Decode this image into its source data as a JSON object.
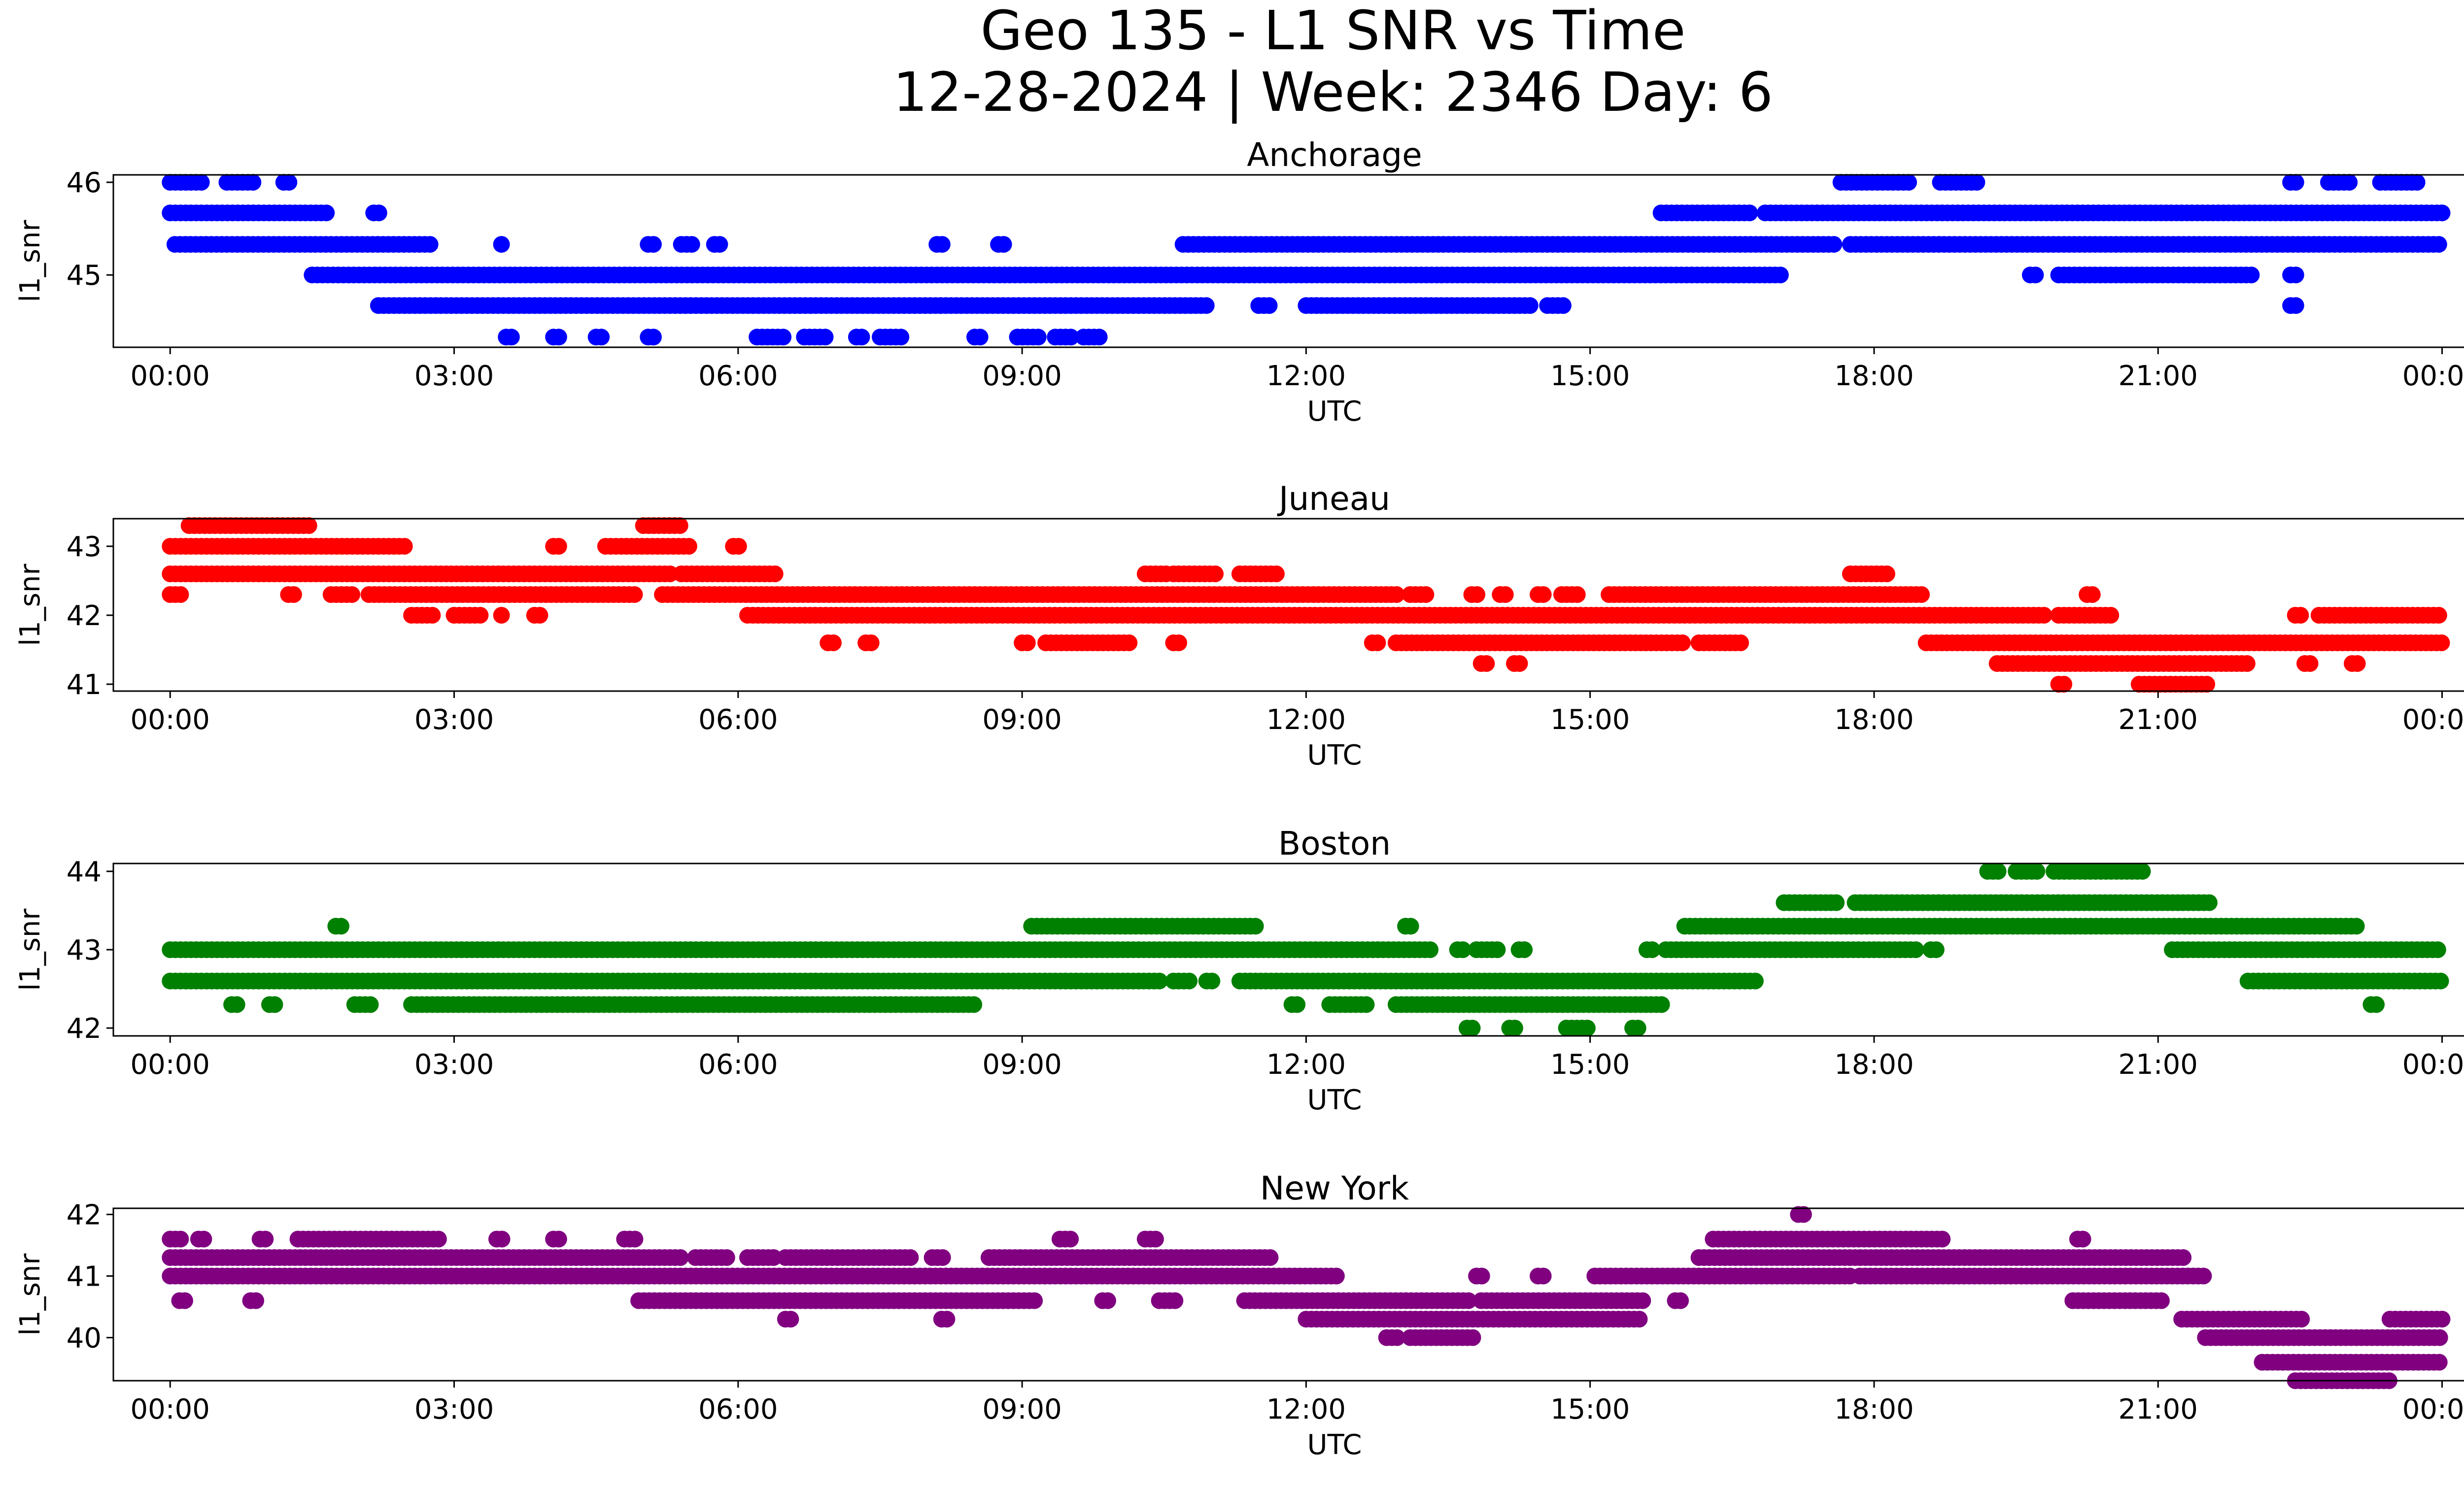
{
  "figure": {
    "title_line1": "Geo 135 - L1 SNR vs Time",
    "title_line2": "12-28-2024 | Week: 2346 Day: 6"
  },
  "chart_data": [
    {
      "type": "scatter",
      "title": "Anchorage",
      "xlabel": "UTC",
      "ylabel": "l1_snr",
      "color": "#0000ff",
      "x_ticks": [
        "00:00",
        "03:00",
        "06:00",
        "09:00",
        "12:00",
        "15:00",
        "18:00",
        "21:00",
        "00:00"
      ],
      "x_range_hours": [
        -0.6,
        25.2
      ],
      "ylim": [
        44.22,
        46.08
      ],
      "y_ticks": [
        45,
        46
      ],
      "levels": [
        {
          "y": 46.0,
          "ranges": [
            [
              0,
              0.33
            ],
            [
              0.6,
              0.92
            ],
            [
              1.2,
              1.3
            ],
            [
              17.65,
              18.4
            ],
            [
              18.7,
              19.1
            ],
            [
              22.4,
              22.5
            ],
            [
              22.8,
              23.05
            ],
            [
              23.35,
              23.75
            ]
          ]
        },
        {
          "y": 45.67,
          "ranges": [
            [
              0,
              1.7
            ],
            [
              2.15,
              2.25
            ],
            [
              15.75,
              16.7
            ],
            [
              16.85,
              24
            ]
          ]
        },
        {
          "y": 45.33,
          "ranges": [
            [
              0.05,
              2.75
            ],
            [
              3.5,
              3.55
            ],
            [
              5.05,
              5.15
            ],
            [
              5.4,
              5.55
            ],
            [
              5.75,
              5.85
            ],
            [
              8.1,
              8.2
            ],
            [
              8.75,
              8.85
            ],
            [
              10.7,
              17.6
            ],
            [
              17.75,
              24
            ]
          ]
        },
        {
          "y": 45.0,
          "ranges": [
            [
              1.5,
              17.05
            ],
            [
              19.65,
              19.75
            ],
            [
              19.95,
              22
            ],
            [
              22.4,
              22.5
            ]
          ]
        },
        {
          "y": 44.67,
          "ranges": [
            [
              2.2,
              10.95
            ],
            [
              11.5,
              11.65
            ],
            [
              12.0,
              14.4
            ],
            [
              14.55,
              14.75
            ],
            [
              22.4,
              22.5
            ]
          ]
        },
        {
          "y": 44.33,
          "ranges": [
            [
              3.55,
              3.65
            ],
            [
              4.05,
              4.15
            ],
            [
              4.5,
              4.6
            ],
            [
              5.05,
              5.15
            ],
            [
              6.2,
              6.5
            ],
            [
              6.7,
              6.95
            ],
            [
              7.25,
              7.35
            ],
            [
              7.5,
              7.75
            ],
            [
              8.5,
              8.6
            ],
            [
              8.95,
              9.2
            ],
            [
              9.35,
              9.55
            ],
            [
              9.65,
              9.85
            ]
          ]
        }
      ]
    },
    {
      "type": "scatter",
      "title": "Juneau",
      "xlabel": "UTC",
      "ylabel": "l1_snr",
      "color": "#ff0000",
      "x_ticks": [
        "00:00",
        "03:00",
        "06:00",
        "09:00",
        "12:00",
        "15:00",
        "18:00",
        "21:00",
        "00:00"
      ],
      "x_range_hours": [
        -0.6,
        25.2
      ],
      "ylim": [
        40.9,
        43.4
      ],
      "y_ticks": [
        41,
        42,
        43
      ],
      "levels": [
        {
          "y": 43.3,
          "ranges": [
            [
              0.2,
              1.5
            ],
            [
              5.0,
              5.4
            ]
          ]
        },
        {
          "y": 43.0,
          "ranges": [
            [
              0,
              2.5
            ],
            [
              4.05,
              4.15
            ],
            [
              4.6,
              5.5
            ],
            [
              5.95,
              6.05
            ]
          ]
        },
        {
          "y": 42.6,
          "ranges": [
            [
              0,
              5.3
            ],
            [
              5.4,
              6.4
            ],
            [
              10.3,
              10.55
            ],
            [
              10.6,
              11.05
            ],
            [
              11.3,
              11.7
            ],
            [
              17.75,
              18.15
            ]
          ]
        },
        {
          "y": 42.3,
          "ranges": [
            [
              0,
              0.15
            ],
            [
              1.25,
              1.35
            ],
            [
              1.7,
              1.95
            ],
            [
              2.1,
              4.95
            ],
            [
              5.2,
              13.0
            ],
            [
              13.1,
              13.3
            ],
            [
              13.75,
              13.85
            ],
            [
              14.05,
              14.15
            ],
            [
              14.45,
              14.55
            ],
            [
              14.7,
              14.9
            ],
            [
              15.2,
              18.5
            ],
            [
              20.25,
              20.35
            ]
          ]
        },
        {
          "y": 42.0,
          "ranges": [
            [
              2.55,
              2.8
            ],
            [
              3.0,
              3.3
            ],
            [
              3.5,
              3.55
            ],
            [
              3.85,
              3.95
            ],
            [
              6.1,
              19.8
            ],
            [
              19.95,
              20.5
            ],
            [
              22.45,
              22.55
            ],
            [
              22.7,
              24
            ]
          ]
        },
        {
          "y": 41.6,
          "ranges": [
            [
              6.95,
              7.05
            ],
            [
              7.35,
              7.45
            ],
            [
              9.0,
              9.1
            ],
            [
              9.25,
              10.15
            ],
            [
              10.6,
              10.7
            ],
            [
              12.7,
              12.8
            ],
            [
              12.95,
              16.0
            ],
            [
              16.15,
              16.6
            ],
            [
              18.55,
              24
            ]
          ]
        },
        {
          "y": 41.3,
          "ranges": [
            [
              13.85,
              13.95
            ],
            [
              14.2,
              14.3
            ],
            [
              19.3,
              21.95
            ],
            [
              22.55,
              22.65
            ],
            [
              23.05,
              23.15
            ]
          ]
        },
        {
          "y": 41.0,
          "ranges": [
            [
              19.95,
              20.05
            ],
            [
              20.8,
              21.55
            ]
          ]
        }
      ]
    },
    {
      "type": "scatter",
      "title": "Boston",
      "xlabel": "UTC",
      "ylabel": "l1_snr",
      "color": "#008000",
      "x_ticks": [
        "00:00",
        "03:00",
        "06:00",
        "09:00",
        "12:00",
        "15:00",
        "18:00",
        "21:00",
        "00:00"
      ],
      "x_range_hours": [
        -0.6,
        25.2
      ],
      "ylim": [
        41.9,
        44.1
      ],
      "y_ticks": [
        42,
        43,
        44
      ],
      "levels": [
        {
          "y": 44.0,
          "ranges": [
            [
              19.2,
              19.35
            ],
            [
              19.5,
              19.75
            ],
            [
              19.9,
              20.85
            ]
          ]
        },
        {
          "y": 43.6,
          "ranges": [
            [
              17.05,
              17.65
            ],
            [
              17.8,
              21.55
            ]
          ]
        },
        {
          "y": 43.3,
          "ranges": [
            [
              1.75,
              1.85
            ],
            [
              9.1,
              11.5
            ],
            [
              13.05,
              13.15
            ],
            [
              16.0,
              23.1
            ]
          ]
        },
        {
          "y": 43.0,
          "ranges": [
            [
              0,
              13.35
            ],
            [
              13.6,
              13.7
            ],
            [
              13.8,
              14.05
            ],
            [
              14.25,
              14.35
            ],
            [
              15.6,
              15.7
            ],
            [
              15.8,
              18.45
            ],
            [
              18.6,
              18.7
            ],
            [
              21.15,
              24
            ]
          ]
        },
        {
          "y": 42.6,
          "ranges": [
            [
              0,
              10.45
            ],
            [
              10.6,
              10.8
            ],
            [
              10.95,
              11.05
            ],
            [
              11.3,
              16.75
            ],
            [
              21.95,
              24
            ]
          ]
        },
        {
          "y": 42.3,
          "ranges": [
            [
              0.65,
              0.75
            ],
            [
              1.05,
              1.15
            ],
            [
              1.95,
              2.15
            ],
            [
              2.55,
              8.5
            ],
            [
              11.85,
              11.95
            ],
            [
              12.25,
              12.65
            ],
            [
              12.95,
              15.8
            ],
            [
              23.25,
              23.35
            ]
          ]
        },
        {
          "y": 42.0,
          "ranges": [
            [
              13.7,
              13.8
            ],
            [
              14.15,
              14.25
            ],
            [
              14.75,
              15.0
            ],
            [
              15.45,
              15.55
            ]
          ]
        }
      ]
    },
    {
      "type": "scatter",
      "title": "New York",
      "xlabel": "UTC",
      "ylabel": "l1_snr",
      "color": "#800080",
      "x_ticks": [
        "00:00",
        "03:00",
        "06:00",
        "09:00",
        "12:00",
        "15:00",
        "18:00",
        "21:00",
        "00:00"
      ],
      "x_range_hours": [
        -0.6,
        25.2
      ],
      "ylim": [
        39.3,
        42.1
      ],
      "y_ticks": [
        40,
        41,
        42
      ],
      "levels": [
        {
          "y": 42.0,
          "ranges": [
            [
              17.2,
              17.3
            ]
          ]
        },
        {
          "y": 41.6,
          "ranges": [
            [
              0,
              0.12
            ],
            [
              0.3,
              0.38
            ],
            [
              0.95,
              1.05
            ],
            [
              1.35,
              2.85
            ],
            [
              3.45,
              3.55
            ],
            [
              4.05,
              4.15
            ],
            [
              4.8,
              4.95
            ],
            [
              9.4,
              9.55
            ],
            [
              10.3,
              10.45
            ],
            [
              16.3,
              18.75
            ],
            [
              20.15,
              20.25
            ]
          ]
        },
        {
          "y": 41.3,
          "ranges": [
            [
              0,
              5.4
            ],
            [
              5.55,
              5.9
            ],
            [
              6.1,
              6.4
            ],
            [
              6.5,
              7.85
            ],
            [
              8.05,
              8.2
            ],
            [
              8.65,
              11.65
            ],
            [
              16.15,
              21.3
            ]
          ]
        },
        {
          "y": 41.0,
          "ranges": [
            [
              0,
              12.35
            ],
            [
              13.8,
              13.9
            ],
            [
              14.45,
              14.55
            ],
            [
              15.05,
              17.75
            ],
            [
              17.85,
              21.5
            ]
          ]
        },
        {
          "y": 40.6,
          "ranges": [
            [
              0.1,
              0.2
            ],
            [
              0.85,
              0.95
            ],
            [
              4.95,
              9.15
            ],
            [
              9.85,
              9.95
            ],
            [
              10.45,
              10.65
            ],
            [
              11.35,
              13.75
            ],
            [
              13.85,
              15.6
            ],
            [
              15.9,
              16.0
            ],
            [
              20.1,
              21.05
            ]
          ]
        },
        {
          "y": 40.3,
          "ranges": [
            [
              6.5,
              6.6
            ],
            [
              8.15,
              8.25
            ],
            [
              12.0,
              15.55
            ],
            [
              21.25,
              22.55
            ],
            [
              23.45,
              24
            ]
          ]
        },
        {
          "y": 40.0,
          "ranges": [
            [
              12.85,
              13.0
            ],
            [
              13.1,
              13.8
            ],
            [
              21.5,
              24
            ]
          ]
        },
        {
          "y": 39.6,
          "ranges": [
            [
              22.1,
              24
            ]
          ]
        },
        {
          "y": 39.3,
          "ranges": [
            [
              22.45,
              23.45
            ]
          ]
        }
      ]
    }
  ]
}
